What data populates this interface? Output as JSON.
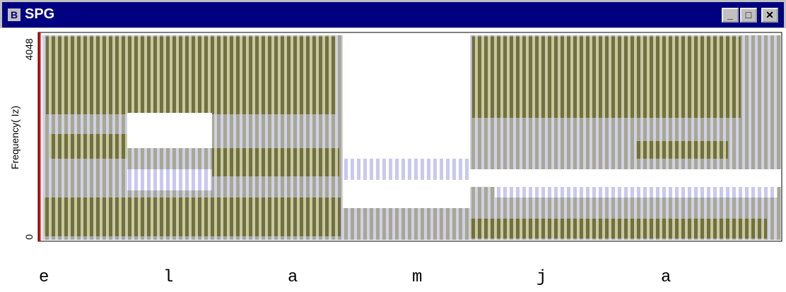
{
  "window": {
    "icon_letter": "B",
    "title": "SPG"
  },
  "axis": {
    "top_label": "4048",
    "bottom_label": "0",
    "ylabel": "Frequency( Iz)"
  },
  "phonemes": [
    "e",
    "l",
    "a",
    "m",
    "j",
    "a"
  ]
}
